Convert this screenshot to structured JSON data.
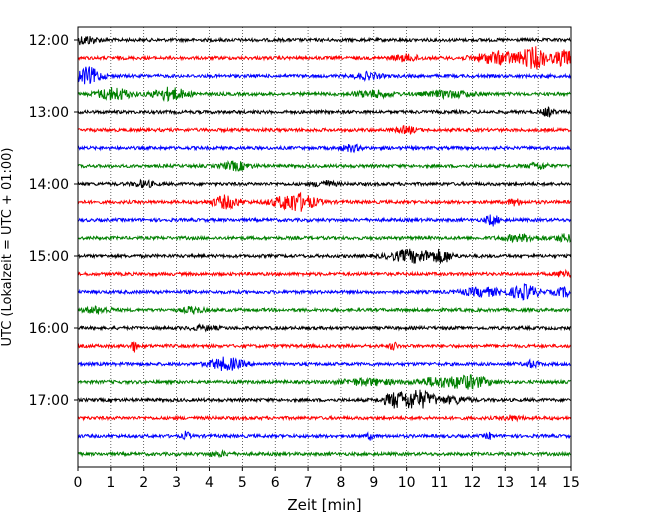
{
  "chart_data": {
    "type": "line",
    "title": "",
    "xlabel": "Zeit  [min]",
    "ylabel": "UTC (Lokalzeit = UTC + 01:00)",
    "xlim": [
      0,
      15
    ],
    "x_ticks": [
      "0",
      "1",
      "2",
      "3",
      "4",
      "5",
      "6",
      "7",
      "8",
      "9",
      "10",
      "11",
      "12",
      "13",
      "14",
      "15"
    ],
    "y_ticks": [
      "12:00",
      "13:00",
      "14:00",
      "15:00",
      "16:00",
      "17:00"
    ],
    "grid": "vertical-dotted",
    "trace_colors": [
      "#000000",
      "#ff0000",
      "#0000ff",
      "#008000"
    ],
    "traces": [
      {
        "start": "12:00",
        "bursts": [
          [
            0.2,
            0.4,
            4
          ]
        ]
      },
      {
        "start": "12:15",
        "bursts": [
          [
            12.8,
            0.7,
            6
          ],
          [
            13.9,
            0.4,
            10
          ],
          [
            14.8,
            0.3,
            8
          ],
          [
            10,
            0.4,
            3
          ]
        ]
      },
      {
        "start": "12:30",
        "bursts": [
          [
            0.3,
            0.4,
            8
          ],
          [
            8.8,
            0.4,
            3
          ]
        ]
      },
      {
        "start": "12:45",
        "bursts": [
          [
            1.1,
            0.5,
            6
          ],
          [
            2.8,
            0.5,
            6
          ],
          [
            9,
            0.6,
            3
          ],
          [
            11.3,
            0.7,
            3
          ]
        ]
      },
      {
        "start": "13:00",
        "bursts": [
          [
            14.3,
            0.2,
            4
          ]
        ]
      },
      {
        "start": "13:15",
        "bursts": [
          [
            10,
            0.3,
            3
          ]
        ]
      },
      {
        "start": "13:30",
        "bursts": [
          [
            8.3,
            0.3,
            3
          ]
        ]
      },
      {
        "start": "13:45",
        "bursts": [
          [
            4.8,
            0.4,
            4
          ],
          [
            14.0,
            0.3,
            3
          ]
        ]
      },
      {
        "start": "14:00",
        "bursts": [
          [
            2.0,
            0.3,
            3
          ],
          [
            7.5,
            0.3,
            3
          ]
        ]
      },
      {
        "start": "14:15",
        "bursts": [
          [
            4.5,
            0.4,
            6
          ],
          [
            6.6,
            0.6,
            9
          ],
          [
            13.3,
            0.2,
            3
          ]
        ]
      },
      {
        "start": "14:30",
        "bursts": [
          [
            12.6,
            0.2,
            5
          ]
        ]
      },
      {
        "start": "14:45",
        "bursts": [
          [
            13.5,
            0.6,
            3
          ],
          [
            14.8,
            0.3,
            3
          ]
        ]
      },
      {
        "start": "15:00",
        "bursts": [
          [
            10.2,
            0.7,
            6
          ],
          [
            11.1,
            0.3,
            5
          ]
        ]
      },
      {
        "start": "15:15",
        "bursts": [
          [
            14.8,
            0.2,
            4
          ]
        ]
      },
      {
        "start": "15:30",
        "bursts": [
          [
            12.3,
            0.6,
            4
          ],
          [
            13.6,
            0.4,
            7
          ],
          [
            14.8,
            0.3,
            4
          ]
        ]
      },
      {
        "start": "15:45",
        "bursts": [
          [
            0.6,
            0.4,
            3
          ],
          [
            3.5,
            0.3,
            3
          ]
        ]
      },
      {
        "start": "16:00",
        "bursts": [
          [
            3.8,
            0.4,
            2
          ]
        ]
      },
      {
        "start": "16:15",
        "bursts": [
          [
            1.7,
            0.1,
            5
          ],
          [
            9.6,
            0.1,
            4
          ]
        ]
      },
      {
        "start": "16:30",
        "bursts": [
          [
            4.5,
            0.5,
            6
          ],
          [
            13.8,
            0.2,
            3
          ]
        ]
      },
      {
        "start": "16:45",
        "bursts": [
          [
            8.8,
            0.8,
            3
          ],
          [
            11.9,
            0.6,
            6
          ],
          [
            10.9,
            0.6,
            4
          ]
        ]
      },
      {
        "start": "17:00",
        "bursts": [
          [
            10.3,
            0.6,
            9
          ],
          [
            9.6,
            0.3,
            5
          ],
          [
            11.5,
            0.4,
            3
          ]
        ]
      },
      {
        "start": "17:15",
        "bursts": [
          [
            13.2,
            0.3,
            2
          ]
        ]
      },
      {
        "start": "17:30",
        "bursts": [
          [
            3.3,
            0.1,
            4
          ],
          [
            8.9,
            0.1,
            3
          ],
          [
            12.5,
            0.1,
            3
          ]
        ]
      },
      {
        "start": "17:45",
        "bursts": [
          [
            4.3,
            0.3,
            2
          ]
        ]
      }
    ]
  }
}
